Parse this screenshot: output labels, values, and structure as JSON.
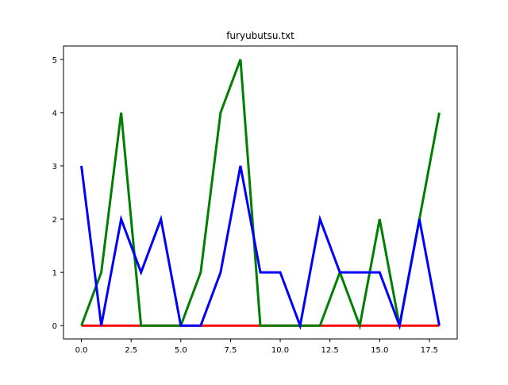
{
  "chart_data": {
    "type": "line",
    "title": "furyubutsu.txt",
    "xlabel": "",
    "ylabel": "",
    "xlim": [
      -0.9,
      18.9
    ],
    "ylim": [
      -0.25,
      5.25
    ],
    "x_ticks": [
      0.0,
      2.5,
      5.0,
      7.5,
      10.0,
      12.5,
      15.0,
      17.5
    ],
    "x_tick_labels": [
      "0.0",
      "2.5",
      "5.0",
      "7.5",
      "10.0",
      "12.5",
      "15.0",
      "17.5"
    ],
    "y_ticks": [
      0,
      1,
      2,
      3,
      4,
      5
    ],
    "y_tick_labels": [
      "0",
      "1",
      "2",
      "3",
      "4",
      "5"
    ],
    "grid": false,
    "legend": "none",
    "x": [
      0,
      1,
      2,
      3,
      4,
      5,
      6,
      7,
      8,
      9,
      10,
      11,
      12,
      13,
      14,
      15,
      16,
      17,
      18
    ],
    "series": [
      {
        "color": "#ff0000",
        "values": [
          0,
          0,
          0,
          0,
          0,
          0,
          0,
          0,
          0,
          0,
          0,
          0,
          0,
          0,
          0,
          0,
          0,
          0,
          0
        ]
      },
      {
        "color": "#008000",
        "values": [
          0,
          1,
          4,
          0,
          0,
          0,
          1,
          4,
          5,
          0,
          0,
          0,
          0,
          1,
          0,
          2,
          0,
          2,
          4
        ]
      },
      {
        "color": "#0000ff",
        "values": [
          3,
          0,
          2,
          1,
          2,
          0,
          0,
          1,
          3,
          1,
          1,
          0,
          2,
          1,
          1,
          1,
          0,
          2,
          0
        ]
      }
    ]
  }
}
